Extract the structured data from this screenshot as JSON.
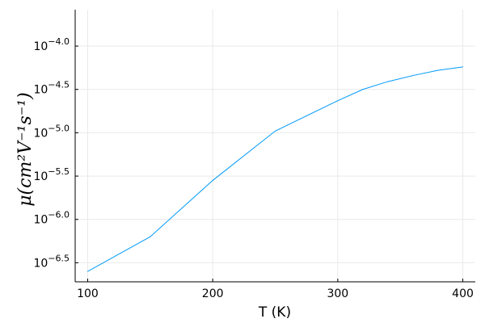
{
  "chart_data": {
    "type": "line",
    "xlabel": "T (K)",
    "ylabel": "μ(cm²V⁻¹s⁻¹)",
    "y_scale": "log10",
    "grid": true,
    "legend": "none",
    "xlim": [
      90,
      410
    ],
    "ylim_log10": [
      -6.72,
      -3.58
    ],
    "x_ticks": [
      100,
      200,
      300,
      400
    ],
    "y_ticks_log10": [
      -6.5,
      -6.0,
      -5.5,
      -5.0,
      -4.5,
      -4.0
    ],
    "y_tick_labels": [
      "10−6.5",
      "10−6.0",
      "10−5.5",
      "10−5.0",
      "10−4.5",
      "10−4.0"
    ],
    "series": [
      {
        "color": "#009AFA",
        "x": [
          100,
          150,
          200,
          250,
          300,
          320,
          340,
          360,
          380,
          400
        ],
        "log10_y": [
          -6.6,
          -6.2,
          -5.55,
          -4.98,
          -4.63,
          -4.5,
          -4.41,
          -4.34,
          -4.28,
          -4.24
        ]
      }
    ]
  }
}
